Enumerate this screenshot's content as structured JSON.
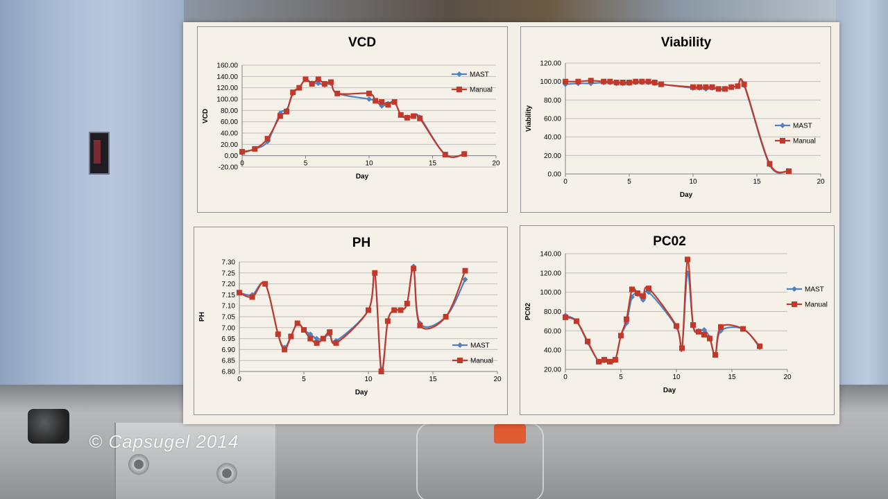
{
  "watermark": "© Capsugel 2014",
  "colors": {
    "mast": "#4f81bd",
    "manual": "#c0392b",
    "grid": "#bdbdbd"
  },
  "chart_data": [
    {
      "id": "vcd",
      "type": "line",
      "title": "VCD",
      "xlabel": "Day",
      "ylabel": "VCD",
      "xlim": [
        0,
        20
      ],
      "ylim": [
        -20,
        160
      ],
      "xticks": [
        0,
        5,
        10,
        15,
        20
      ],
      "xtick_labels": [
        "0",
        "5",
        "10",
        "15",
        "20"
      ],
      "yticks": [
        -20,
        0,
        20,
        40,
        60,
        80,
        100,
        120,
        140,
        160
      ],
      "ytick_labels": [
        "-20.00",
        "0.00",
        "20.00",
        "40.00",
        "60.00",
        "80.00",
        "100.00",
        "120.00",
        "140.00",
        "160.00"
      ],
      "legend": "right",
      "grid": true,
      "series": [
        {
          "name": "MAST",
          "x": [
            0,
            1,
            2,
            3,
            3.5,
            4,
            4.5,
            5,
            5.5,
            6,
            6.5,
            7,
            7.5,
            10,
            10.5,
            11,
            11.5,
            12,
            12.5,
            13,
            13.5,
            14,
            16,
            17.5
          ],
          "y": [
            5,
            12,
            25,
            75,
            80,
            110,
            120,
            135,
            128,
            128,
            125,
            128,
            110,
            100,
            97,
            88,
            92,
            95,
            72,
            68,
            70,
            68,
            2,
            2
          ]
        },
        {
          "name": "Manual",
          "x": [
            0,
            1,
            2,
            3,
            3.5,
            4,
            4.5,
            5,
            5.5,
            6,
            6.5,
            7,
            7.5,
            10,
            10.5,
            11,
            11.5,
            12,
            12.5,
            13,
            13.5,
            14,
            16,
            17.5
          ],
          "y": [
            7,
            12,
            30,
            70,
            78,
            112,
            120,
            135,
            127,
            135,
            127,
            130,
            110,
            110,
            97,
            95,
            90,
            95,
            72,
            67,
            70,
            66,
            2,
            3
          ]
        }
      ]
    },
    {
      "id": "viability",
      "type": "line",
      "title": "Viability",
      "xlabel": "Day",
      "ylabel": "Viability",
      "xlim": [
        0,
        20
      ],
      "ylim": [
        0,
        120
      ],
      "xticks": [
        0,
        5,
        10,
        15,
        20
      ],
      "xtick_labels": [
        "0",
        "5",
        "10",
        "15",
        "20"
      ],
      "yticks": [
        0,
        20,
        40,
        60,
        80,
        100,
        120
      ],
      "ytick_labels": [
        "0.00",
        "20.00",
        "40.00",
        "60.00",
        "80.00",
        "100.00",
        "120.00"
      ],
      "legend": "right",
      "grid": true,
      "series": [
        {
          "name": "MAST",
          "x": [
            0,
            1,
            2,
            3,
            3.5,
            4,
            4.5,
            5,
            5.5,
            6,
            6.5,
            7,
            7.5,
            10,
            10.5,
            11,
            11.5,
            12,
            12.5,
            13,
            13.5,
            14,
            16,
            17.5
          ],
          "y": [
            97,
            98,
            98,
            99,
            99,
            98,
            98,
            98,
            99,
            99,
            99,
            98,
            97,
            93,
            93,
            92,
            93,
            92,
            92,
            94,
            95,
            96,
            10,
            3
          ]
        },
        {
          "name": "Manual",
          "x": [
            0,
            1,
            2,
            3,
            3.5,
            4,
            4.5,
            5,
            5.5,
            6,
            6.5,
            7,
            7.5,
            10,
            10.5,
            11,
            11.5,
            12,
            12.5,
            13,
            13.5,
            14,
            16,
            17.5
          ],
          "y": [
            100,
            100,
            101,
            100,
            100,
            99,
            99,
            99,
            100,
            100,
            100,
            99,
            97,
            94,
            94,
            94,
            94,
            92,
            92,
            94,
            95,
            97,
            11,
            3
          ]
        }
      ]
    },
    {
      "id": "ph",
      "type": "line",
      "title": "PH",
      "xlabel": "Day",
      "ylabel": "PH",
      "xlim": [
        0,
        20
      ],
      "ylim": [
        6.8,
        7.3
      ],
      "xticks": [
        0,
        5,
        10,
        15,
        20
      ],
      "xtick_labels": [
        "0",
        "5",
        "10",
        "15",
        "20"
      ],
      "yticks": [
        6.8,
        6.85,
        6.9,
        6.95,
        7.0,
        7.05,
        7.1,
        7.15,
        7.2,
        7.25,
        7.3
      ],
      "ytick_labels": [
        "6.80",
        "6.85",
        "6.90",
        "6.95",
        "7.00",
        "7.05",
        "7.10",
        "7.15",
        "7.20",
        "7.25",
        "7.30"
      ],
      "legend": "bottom-right",
      "grid": true,
      "series": [
        {
          "name": "MAST",
          "x": [
            0,
            1,
            2,
            3,
            3.5,
            4,
            4.5,
            5,
            5.5,
            6,
            6.5,
            7,
            7.5,
            10,
            10.5,
            11,
            11.5,
            12,
            12.5,
            13,
            13.5,
            14,
            16,
            17.5
          ],
          "y": [
            7.16,
            7.15,
            7.2,
            6.97,
            6.91,
            6.96,
            7.02,
            6.99,
            6.97,
            6.95,
            6.95,
            6.97,
            6.94,
            7.08,
            7.25,
            6.81,
            7.03,
            7.08,
            7.08,
            7.11,
            7.28,
            7.02,
            7.05,
            7.22
          ]
        },
        {
          "name": "Manual",
          "x": [
            0,
            1,
            2,
            3,
            3.5,
            4,
            4.5,
            5,
            5.5,
            6,
            6.5,
            7,
            7.5,
            10,
            10.5,
            11,
            11.5,
            12,
            12.5,
            13,
            13.5,
            14,
            16,
            17.5
          ],
          "y": [
            7.16,
            7.14,
            7.2,
            6.97,
            6.9,
            6.96,
            7.02,
            6.99,
            6.95,
            6.93,
            6.95,
            6.98,
            6.93,
            7.08,
            7.25,
            6.8,
            7.03,
            7.08,
            7.08,
            7.11,
            7.27,
            7.01,
            7.05,
            7.26
          ]
        }
      ]
    },
    {
      "id": "pc02",
      "type": "line",
      "title": "PC02",
      "xlabel": "Day",
      "ylabel": "PC02",
      "xlim": [
        0,
        20
      ],
      "ylim": [
        20,
        140
      ],
      "xticks": [
        0,
        5,
        10,
        15,
        20
      ],
      "xtick_labels": [
        "0",
        "5",
        "10",
        "15",
        "20"
      ],
      "yticks": [
        20,
        40,
        60,
        80,
        100,
        120,
        140
      ],
      "ytick_labels": [
        "20.00",
        "40.00",
        "60.00",
        "80.00",
        "100.00",
        "120.00",
        "140.00"
      ],
      "legend": "right",
      "grid": true,
      "series": [
        {
          "name": "MAST",
          "x": [
            0,
            1,
            2,
            3,
            3.5,
            4,
            4.5,
            5,
            5.5,
            6,
            6.5,
            7,
            7.5,
            10,
            10.5,
            11,
            11.5,
            12,
            12.5,
            13,
            13.5,
            14,
            16,
            17.5
          ],
          "y": [
            76,
            70,
            48,
            28,
            29,
            28,
            30,
            55,
            68,
            95,
            98,
            92,
            100,
            64,
            42,
            120,
            66,
            60,
            61,
            53,
            35,
            60,
            62,
            43
          ]
        },
        {
          "name": "Manual",
          "x": [
            0,
            1,
            2,
            3,
            3.5,
            4,
            4.5,
            5,
            5.5,
            6,
            6.5,
            7,
            7.5,
            10,
            10.5,
            11,
            11.5,
            12,
            12.5,
            13,
            13.5,
            14,
            16,
            17.5
          ],
          "y": [
            74,
            70,
            49,
            28,
            30,
            28,
            30,
            55,
            72,
            103,
            99,
            96,
            104,
            65,
            42,
            134,
            66,
            59,
            56,
            52,
            35,
            64,
            62,
            44
          ]
        }
      ]
    }
  ]
}
